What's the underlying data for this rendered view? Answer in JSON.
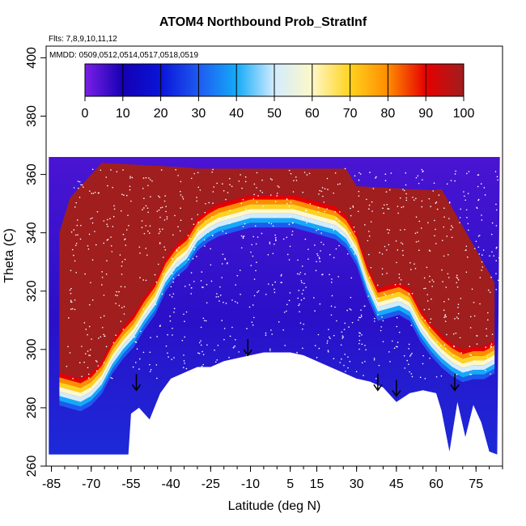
{
  "chart_data": {
    "type": "heatmap",
    "title": "ATOM4 Northbound Prob_StratInf",
    "flights_label": "Flts: 7,8,9,10,11,12",
    "dates_label": "MMDD: 0509,0512,0514,0517,0518,0519",
    "xlabel": "Latitude (deg N)",
    "ylabel": "Theta (C)",
    "xlim": [
      -87,
      85
    ],
    "ylim": [
      260,
      404
    ],
    "x_ticks": [
      "-85",
      "-70",
      "-55",
      "-40",
      "-25",
      "-10",
      "5",
      "15",
      "30",
      "45",
      "60",
      "75"
    ],
    "x_tick_values": [
      -85,
      -70,
      -55,
      -40,
      -25,
      -10,
      5,
      15,
      30,
      45,
      60,
      75
    ],
    "y_ticks": [
      "260",
      "280",
      "300",
      "320",
      "340",
      "360",
      "380",
      "400"
    ],
    "y_tick_values": [
      260,
      280,
      300,
      320,
      340,
      360,
      380,
      400
    ],
    "colorbar": {
      "range": [
        0,
        100
      ],
      "ticks": [
        "0",
        "10",
        "20",
        "30",
        "40",
        "50",
        "60",
        "70",
        "80",
        "90",
        "100"
      ],
      "colors": [
        "#7b1fe6",
        "#1400b4",
        "#0a14d8",
        "#1e5af0",
        "#14aaf8",
        "#d2ecff",
        "#fff8c8",
        "#ffd21e",
        "#ff8c00",
        "#e60000",
        "#a01e1e"
      ]
    },
    "series": [
      {
        "name": "Upper boundary of low-probability region",
        "x": [
          -82,
          -78,
          -74,
          -70,
          -66,
          -62,
          -58,
          -54,
          -50,
          -46,
          -42,
          -38,
          -34,
          -30,
          -26,
          -22,
          -18,
          -14,
          -10,
          -6,
          -2,
          2,
          6,
          10,
          14,
          18,
          22,
          26,
          30,
          34,
          38,
          42,
          46,
          50,
          54,
          58,
          62,
          66,
          70,
          74,
          78,
          82
        ],
        "y": [
          292,
          291,
          290,
          292,
          296,
          303,
          308,
          312,
          318,
          323,
          331,
          336,
          339,
          345,
          348,
          350,
          351,
          352,
          353,
          353,
          353,
          353,
          353,
          352,
          351,
          350,
          349,
          346,
          340,
          329,
          321,
          322,
          323,
          321,
          314,
          309,
          305,
          302,
          300,
          301,
          301,
          303
        ]
      },
      {
        "name": "Lower data boundary",
        "x": [
          -86,
          -80,
          -74,
          -68,
          -62,
          -56,
          -55,
          -52,
          -48,
          -44,
          -40,
          -35,
          -30,
          -25,
          -20,
          -15,
          -10,
          -5,
          0,
          5,
          10,
          15,
          20,
          25,
          30,
          35,
          40,
          45,
          50,
          55,
          60,
          62,
          65,
          68,
          71,
          74,
          77,
          80,
          83
        ],
        "y": [
          264,
          264,
          264,
          264,
          264,
          264,
          278,
          280,
          276,
          285,
          290,
          292,
          294,
          294,
          296,
          297,
          298,
          299,
          299,
          299,
          298,
          296,
          294,
          292,
          290,
          289,
          287,
          282,
          285,
          286,
          285,
          279,
          265,
          282,
          270,
          281,
          275,
          265,
          264
        ]
      }
    ],
    "annotations": [
      {
        "label": "profile-marker",
        "x": -53,
        "y": 286
      },
      {
        "label": "profile-marker",
        "x": -11,
        "y": 298
      },
      {
        "label": "profile-marker",
        "x": 38,
        "y": 286
      },
      {
        "label": "profile-marker",
        "x": 45,
        "y": 284
      },
      {
        "label": "profile-marker",
        "x": 67,
        "y": 286
      }
    ]
  }
}
